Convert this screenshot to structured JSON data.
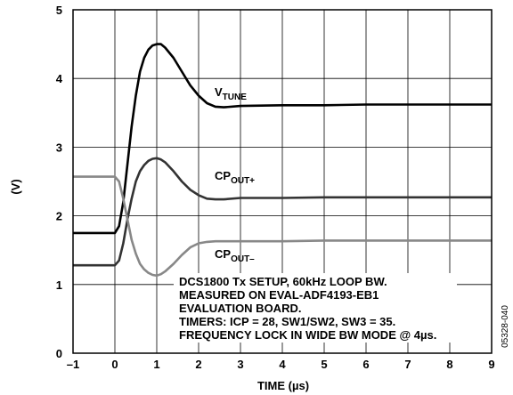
{
  "chart_data": {
    "type": "line",
    "xlabel_main": "TIME (",
    "xlabel_unit": "µs",
    "xlabel_close": ")",
    "ylabel": "(V)",
    "xlim": [
      -1,
      9
    ],
    "ylim": [
      0,
      5
    ],
    "xticks": [
      "–1",
      "0",
      "1",
      "2",
      "3",
      "4",
      "5",
      "6",
      "7",
      "8",
      "9"
    ],
    "yticks": [
      "0",
      "1",
      "2",
      "3",
      "4",
      "5"
    ],
    "grid": true,
    "series": [
      {
        "label_main": "V",
        "label_sub": "TUNE",
        "color": "#000000",
        "x": [
          -1,
          0,
          0.1,
          0.2,
          0.3,
          0.4,
          0.5,
          0.6,
          0.7,
          0.8,
          0.9,
          1.0,
          1.1,
          1.2,
          1.4,
          1.6,
          1.8,
          2.0,
          2.2,
          2.4,
          2.6,
          3.0,
          4.0,
          5.0,
          6.0,
          7.0,
          8.0,
          9.0
        ],
        "y": [
          1.75,
          1.75,
          1.85,
          2.2,
          2.75,
          3.3,
          3.75,
          4.1,
          4.3,
          4.42,
          4.48,
          4.5,
          4.5,
          4.45,
          4.3,
          4.1,
          3.9,
          3.75,
          3.64,
          3.59,
          3.58,
          3.6,
          3.61,
          3.61,
          3.62,
          3.62,
          3.62,
          3.62
        ]
      },
      {
        "label_main": "CP",
        "label_sub": "OUT+",
        "color": "#333333",
        "x": [
          -1,
          0,
          0.1,
          0.2,
          0.3,
          0.4,
          0.5,
          0.6,
          0.7,
          0.8,
          0.9,
          1.0,
          1.1,
          1.2,
          1.4,
          1.6,
          1.8,
          2.0,
          2.2,
          2.4,
          2.6,
          3.0,
          4.0,
          5.0,
          6.0,
          7.0,
          8.0,
          9.0
        ],
        "y": [
          1.28,
          1.28,
          1.35,
          1.6,
          1.95,
          2.25,
          2.5,
          2.65,
          2.74,
          2.8,
          2.83,
          2.84,
          2.82,
          2.78,
          2.65,
          2.5,
          2.38,
          2.3,
          2.25,
          2.24,
          2.24,
          2.26,
          2.26,
          2.27,
          2.27,
          2.27,
          2.27,
          2.27
        ]
      },
      {
        "label_main": "CP",
        "label_sub": "OUT–",
        "color": "#888888",
        "x": [
          -1,
          0,
          0.1,
          0.2,
          0.3,
          0.4,
          0.5,
          0.6,
          0.7,
          0.8,
          0.9,
          1.0,
          1.1,
          1.2,
          1.4,
          1.6,
          1.8,
          2.0,
          2.2,
          2.4,
          2.6,
          3.0,
          4.0,
          5.0,
          6.0,
          7.0,
          8.0,
          9.0
        ],
        "y": [
          2.57,
          2.57,
          2.5,
          2.25,
          1.95,
          1.65,
          1.45,
          1.3,
          1.22,
          1.17,
          1.14,
          1.13,
          1.15,
          1.19,
          1.3,
          1.43,
          1.54,
          1.6,
          1.62,
          1.63,
          1.63,
          1.63,
          1.63,
          1.64,
          1.64,
          1.64,
          1.64,
          1.64
        ]
      }
    ],
    "annotation_lines": [
      "DCS1800 Tx SETUP, 60kHz LOOP BW.",
      "MEASURED ON EVAL-ADF4193-EB1",
      "EVALUATION BOARD.",
      "TIMERS: ICP = 28, SW1/SW2, SW3 = 35.",
      "FREQUENCY LOCK IN WIDE BW MODE @ 4µs."
    ],
    "figure_id": "05328-040"
  }
}
